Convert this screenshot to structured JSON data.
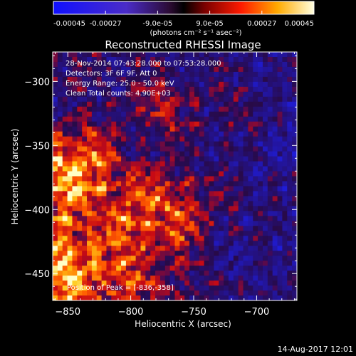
{
  "colorbar": {
    "ticks": [
      "-0.00045",
      "-0.00027",
      "-9.0e-05",
      "9.0e-05",
      "0.00027",
      "0.00045"
    ],
    "units": "(photons cm⁻² s⁻¹ asec⁻²)"
  },
  "footer": {
    "timestamp": "14-Aug-2017 12:01"
  },
  "chart_data": {
    "type": "heatmap",
    "title": "Reconstructed RHESSI Image",
    "xlabel": "Heliocentric X (arcsec)",
    "ylabel": "Heliocentric Y (arcsec)",
    "xlim": [
      -862,
      -668
    ],
    "ylim": [
      -471,
      -277
    ],
    "x_ticks": [
      -850,
      -800,
      -750,
      -700
    ],
    "y_ticks": [
      -300,
      -350,
      -400,
      -450
    ],
    "colorbar_range": [
      -0.00045,
      0.00045
    ],
    "annotations": [
      "28-Nov-2014 07:43:28.000 to 07:53:28.000",
      "Detectors: 3F 6F 9F, Att 0",
      "Energy Range: 25.0 - 50.0 keV",
      "Clean     Total counts: 4.90E+03",
      "Position of Peak = [-836,-358]"
    ],
    "peak_position": [
      -836,
      -358
    ],
    "colors": {
      "negative": "#1a1aff",
      "zero": "#000000",
      "positive_low": "#cc0000",
      "positive_mid": "#ff8800",
      "positive_high": "#ffffcc"
    }
  }
}
